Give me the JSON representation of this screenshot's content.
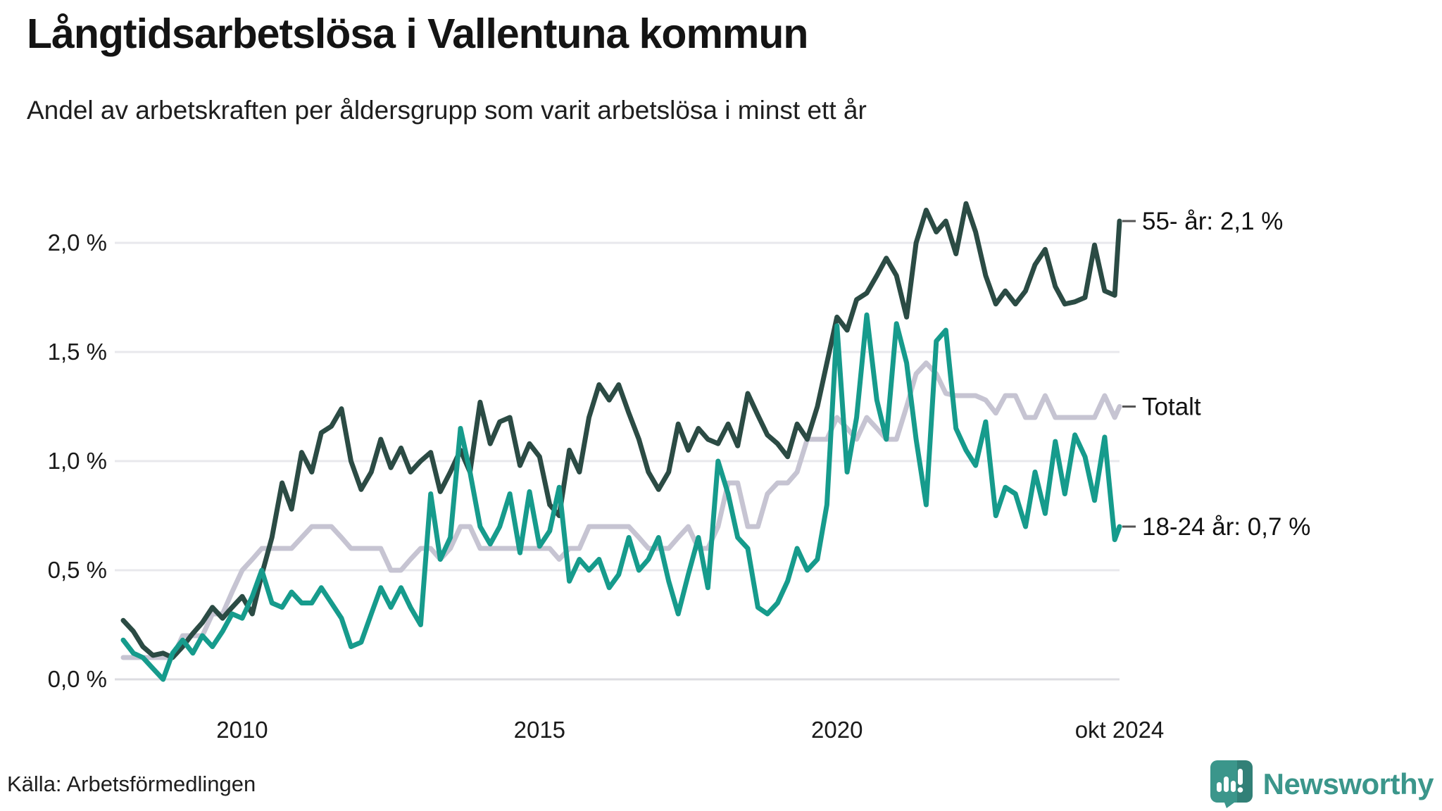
{
  "header": {
    "title": "Långtidsarbetslösa i Vallentuna kommun",
    "subtitle": "Andel av arbetskraften per åldersgrupp som varit arbetslösa i minst ett år"
  },
  "chart_data": {
    "type": "line",
    "title": "Långtidsarbetslösa i Vallentuna kommun",
    "subtitle": "Andel av arbetskraften per åldersgrupp som varit arbetslösa i minst ett år",
    "xlabel": "",
    "ylabel": "",
    "unit": "% av arbetskraften",
    "grid": "horizontal",
    "legend_position": "end-of-line-labels-right",
    "xlim": [
      2008.0,
      2024.75
    ],
    "ylim": [
      0,
      2.25
    ],
    "xticks": [
      {
        "value": 2010,
        "label": "2010"
      },
      {
        "value": 2015,
        "label": "2015"
      },
      {
        "value": 2020,
        "label": "2020"
      },
      {
        "value": 2024.75,
        "label": "okt 2024"
      }
    ],
    "yticks": [
      {
        "value": 0.0,
        "label": "0,0 %"
      },
      {
        "value": 0.5,
        "label": "0,5 %"
      },
      {
        "value": 1.0,
        "label": "1,0 %"
      },
      {
        "value": 1.5,
        "label": "1,5 %"
      },
      {
        "value": 2.0,
        "label": "2,0 %"
      }
    ],
    "x": [
      2008,
      2008.17,
      2008.33,
      2008.5,
      2008.67,
      2008.83,
      2009,
      2009.17,
      2009.33,
      2009.5,
      2009.67,
      2009.83,
      2010,
      2010.17,
      2010.33,
      2010.5,
      2010.67,
      2010.83,
      2011,
      2011.17,
      2011.33,
      2011.5,
      2011.67,
      2011.83,
      2012,
      2012.17,
      2012.33,
      2012.5,
      2012.67,
      2012.83,
      2013,
      2013.17,
      2013.33,
      2013.5,
      2013.67,
      2013.83,
      2014,
      2014.17,
      2014.33,
      2014.5,
      2014.67,
      2014.83,
      2015,
      2015.17,
      2015.33,
      2015.5,
      2015.67,
      2015.83,
      2016,
      2016.17,
      2016.33,
      2016.5,
      2016.67,
      2016.83,
      2017,
      2017.17,
      2017.33,
      2017.5,
      2017.67,
      2017.83,
      2018,
      2018.17,
      2018.33,
      2018.5,
      2018.67,
      2018.83,
      2019,
      2019.17,
      2019.33,
      2019.5,
      2019.67,
      2019.83,
      2020,
      2020.17,
      2020.33,
      2020.5,
      2020.67,
      2020.83,
      2021,
      2021.17,
      2021.33,
      2021.5,
      2021.67,
      2021.83,
      2022,
      2022.17,
      2022.33,
      2022.5,
      2022.67,
      2022.83,
      2023,
      2023.17,
      2023.33,
      2023.5,
      2023.67,
      2023.83,
      2024,
      2024.17,
      2024.33,
      2024.5,
      2024.67,
      2024.75
    ],
    "series": [
      {
        "name": "55- år",
        "end_label": "55- år: 2,1 %",
        "end_value_label": "2,1 %",
        "color": "#2b4b44",
        "z": 2,
        "values": [
          0.27,
          0.22,
          0.15,
          0.11,
          0.12,
          0.1,
          0.15,
          0.21,
          0.26,
          0.33,
          0.28,
          0.33,
          0.38,
          0.3,
          0.48,
          0.65,
          0.9,
          0.78,
          1.04,
          0.95,
          1.13,
          1.16,
          1.24,
          1.0,
          0.87,
          0.95,
          1.1,
          0.97,
          1.06,
          0.95,
          1.0,
          1.04,
          0.86,
          0.95,
          1.05,
          0.95,
          1.27,
          1.08,
          1.18,
          1.2,
          0.98,
          1.08,
          1.02,
          0.8,
          0.75,
          1.05,
          0.95,
          1.2,
          1.35,
          1.28,
          1.35,
          1.22,
          1.1,
          0.95,
          0.87,
          0.95,
          1.17,
          1.05,
          1.15,
          1.1,
          1.08,
          1.17,
          1.07,
          1.31,
          1.21,
          1.12,
          1.08,
          1.02,
          1.17,
          1.1,
          1.25,
          1.45,
          1.66,
          1.6,
          1.74,
          1.77,
          1.85,
          1.93,
          1.85,
          1.66,
          2.0,
          2.15,
          2.05,
          2.1,
          1.95,
          2.18,
          2.05,
          1.85,
          1.72,
          1.78,
          1.72,
          1.78,
          1.9,
          1.97,
          1.8,
          1.72,
          1.73,
          1.75,
          1.99,
          1.78,
          1.76,
          2.1
        ]
      },
      {
        "name": "Totalt",
        "end_label": "Totalt",
        "end_value_label": "",
        "color": "#c6c4d2",
        "z": 1,
        "values": [
          0.1,
          0.1,
          0.1,
          0.1,
          0.1,
          0.1,
          0.2,
          0.2,
          0.2,
          0.3,
          0.3,
          0.4,
          0.5,
          0.55,
          0.6,
          0.6,
          0.6,
          0.6,
          0.65,
          0.7,
          0.7,
          0.7,
          0.65,
          0.6,
          0.6,
          0.6,
          0.6,
          0.5,
          0.5,
          0.55,
          0.6,
          0.6,
          0.55,
          0.6,
          0.7,
          0.7,
          0.6,
          0.6,
          0.6,
          0.6,
          0.6,
          0.6,
          0.6,
          0.6,
          0.55,
          0.6,
          0.6,
          0.7,
          0.7,
          0.7,
          0.7,
          0.7,
          0.65,
          0.6,
          0.6,
          0.6,
          0.65,
          0.7,
          0.6,
          0.6,
          0.7,
          0.9,
          0.9,
          0.7,
          0.7,
          0.85,
          0.9,
          0.9,
          0.95,
          1.1,
          1.1,
          1.1,
          1.2,
          1.15,
          1.1,
          1.2,
          1.15,
          1.1,
          1.1,
          1.25,
          1.4,
          1.45,
          1.4,
          1.31,
          1.3,
          1.3,
          1.3,
          1.28,
          1.22,
          1.3,
          1.3,
          1.2,
          1.2,
          1.3,
          1.2,
          1.2,
          1.2,
          1.2,
          1.2,
          1.3,
          1.2,
          1.25
        ]
      },
      {
        "name": "18-24 år",
        "end_label": "18-24 år: 0,7 %",
        "end_value_label": "0,7 %",
        "color": "#169b8c",
        "z": 3,
        "values": [
          0.18,
          0.12,
          0.1,
          0.05,
          0.0,
          0.12,
          0.18,
          0.12,
          0.2,
          0.15,
          0.22,
          0.3,
          0.28,
          0.38,
          0.5,
          0.35,
          0.33,
          0.4,
          0.35,
          0.35,
          0.42,
          0.35,
          0.28,
          0.15,
          0.17,
          0.3,
          0.42,
          0.33,
          0.42,
          0.33,
          0.25,
          0.85,
          0.55,
          0.65,
          1.15,
          0.95,
          0.7,
          0.62,
          0.7,
          0.85,
          0.58,
          0.86,
          0.61,
          0.68,
          0.88,
          0.45,
          0.55,
          0.5,
          0.55,
          0.42,
          0.48,
          0.65,
          0.5,
          0.55,
          0.65,
          0.45,
          0.3,
          0.48,
          0.65,
          0.42,
          1.0,
          0.85,
          0.65,
          0.6,
          0.33,
          0.3,
          0.35,
          0.45,
          0.6,
          0.5,
          0.55,
          0.8,
          1.62,
          0.95,
          1.2,
          1.67,
          1.28,
          1.1,
          1.63,
          1.45,
          1.1,
          0.8,
          1.55,
          1.6,
          1.15,
          1.05,
          0.98,
          1.18,
          0.75,
          0.88,
          0.85,
          0.7,
          0.95,
          0.76,
          1.09,
          0.85,
          1.12,
          1.02,
          0.82,
          1.11,
          0.64,
          0.7
        ]
      }
    ],
    "colors": {
      "gridline": "#e8e8ec",
      "zero_line": "#dcdce1",
      "axis_text": "#1a1a1a",
      "label_tick": "#555555"
    }
  },
  "source": {
    "label": "Källa: Arbetsförmedlingen"
  },
  "branding": {
    "name": "Newsworthy",
    "color": "#3b968b"
  }
}
